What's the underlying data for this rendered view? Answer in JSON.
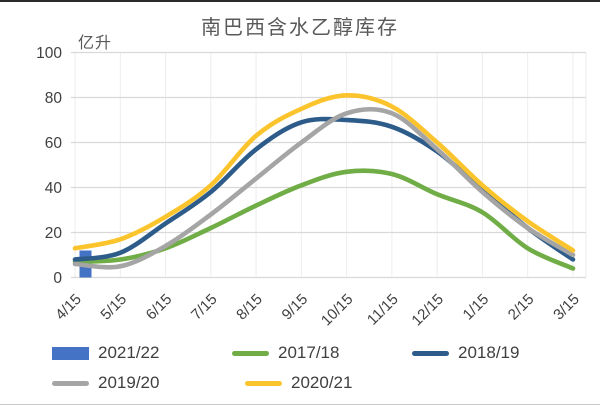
{
  "chart": {
    "title": "南巴西含水乙醇库存",
    "unit_label": "亿升"
  },
  "chart_data": {
    "type": "line",
    "title": "南巴西含水乙醇库存",
    "ylabel": "亿升",
    "xlabel": "",
    "ylim": [
      0,
      100
    ],
    "yticks": [
      0,
      20,
      40,
      60,
      80,
      100
    ],
    "grid": true,
    "legend_position": "bottom",
    "categories": [
      "4/15",
      "5/15",
      "6/15",
      "7/15",
      "8/15",
      "9/15",
      "10/15",
      "11/15",
      "12/15",
      "1/15",
      "2/15",
      "3/15"
    ],
    "series": [
      {
        "name": "2021/22",
        "type": "bar",
        "color": "#4472C4",
        "values": [
          12,
          null,
          null,
          null,
          null,
          null,
          null,
          null,
          null,
          null,
          null,
          null
        ]
      },
      {
        "name": "2017/18",
        "type": "line",
        "color": "#70AD47",
        "values": [
          7,
          8,
          13,
          22,
          32,
          41,
          47,
          46,
          37,
          29,
          13,
          4
        ]
      },
      {
        "name": "2018/19",
        "type": "line",
        "color": "#2E5C8A",
        "values": [
          8,
          11,
          24,
          38,
          57,
          69,
          70,
          67,
          56,
          39,
          22,
          8
        ]
      },
      {
        "name": "2019/20",
        "type": "line",
        "color": "#A5A5A5",
        "values": [
          6,
          5,
          14,
          28,
          44,
          60,
          73,
          73,
          57,
          38,
          22,
          10
        ]
      },
      {
        "name": "2020/21",
        "type": "line",
        "color": "#FCC42C",
        "values": [
          13,
          17,
          27,
          41,
          63,
          75,
          81,
          76,
          60,
          41,
          25,
          12
        ]
      }
    ],
    "axis_text_color": "#404040",
    "gridline_color": "#d9d9d9"
  }
}
